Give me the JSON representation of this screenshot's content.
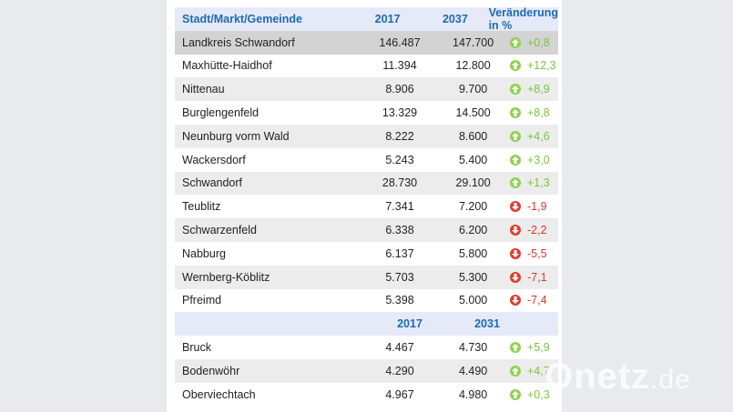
{
  "header": {
    "name": "Stadt/Markt/Gemeinde",
    "y1": "2017",
    "y2": "2037",
    "change": "Veränderung in %"
  },
  "rows": [
    {
      "name": "Landkreis Schwandorf",
      "v1": "146.487",
      "v2": "147.700",
      "change": "+0,8",
      "dir": "up"
    },
    {
      "name": "Maxhütte-Haidhof",
      "v1": "11.394",
      "v2": "12.800",
      "change": "+12,3",
      "dir": "up"
    },
    {
      "name": "Nittenau",
      "v1": "8.906",
      "v2": "9.700",
      "change": "+8,9",
      "dir": "up"
    },
    {
      "name": "Burglengenfeld",
      "v1": "13.329",
      "v2": "14.500",
      "change": "+8,8",
      "dir": "up"
    },
    {
      "name": "Neunburg vorm Wald",
      "v1": "8.222",
      "v2": "8.600",
      "change": "+4,6",
      "dir": "up"
    },
    {
      "name": "Wackersdorf",
      "v1": "5.243",
      "v2": "5.400",
      "change": "+3,0",
      "dir": "up"
    },
    {
      "name": "Schwandorf",
      "v1": "28.730",
      "v2": "29.100",
      "change": "+1,3",
      "dir": "up"
    },
    {
      "name": "Teublitz",
      "v1": "7.341",
      "v2": "7.200",
      "change": "-1,9",
      "dir": "down"
    },
    {
      "name": "Schwarzenfeld",
      "v1": "6.338",
      "v2": "6.200",
      "change": "-2,2",
      "dir": "down"
    },
    {
      "name": "Nabburg",
      "v1": "6.137",
      "v2": "5.800",
      "change": "-5,5",
      "dir": "down"
    },
    {
      "name": "Wernberg-Köblitz",
      "v1": "5.703",
      "v2": "5.300",
      "change": "-7,1",
      "dir": "down"
    },
    {
      "name": "Pfreimd",
      "v1": "5.398",
      "v2": "5.000",
      "change": "-7,4",
      "dir": "down"
    }
  ],
  "header2": {
    "y1": "2017",
    "y2": "2031"
  },
  "rows2": [
    {
      "name": "Bruck",
      "v1": "4.467",
      "v2": "4.730",
      "change": "+5,9",
      "dir": "up"
    },
    {
      "name": "Bodenwöhr",
      "v1": "4.290",
      "v2": "4.490",
      "change": "+4,7",
      "dir": "up"
    },
    {
      "name": "Oberviechtach",
      "v1": "4.967",
      "v2": "4.980",
      "change": "+0,3",
      "dir": "up"
    }
  ],
  "colors": {
    "header_bg": "#e5e9f8",
    "header_text": "#1f6bb0",
    "up": "#7cc245",
    "down": "#d23a2e"
  },
  "watermark": "Onetz.de"
}
